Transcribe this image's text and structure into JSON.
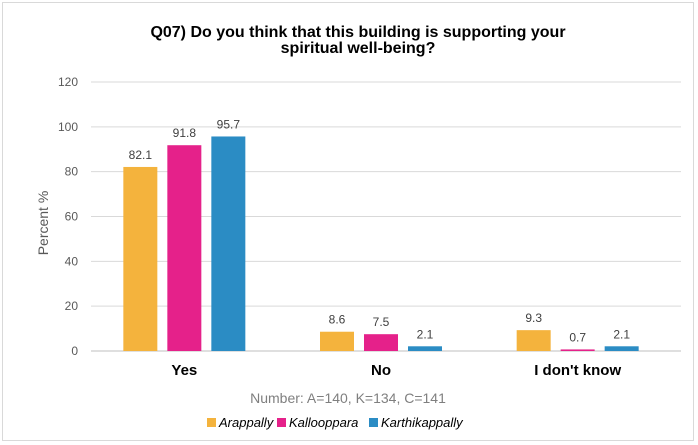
{
  "chart_data": {
    "type": "bar",
    "title_lines": [
      "Q07) Do you think that this building is supporting your",
      "spiritual well-being?"
    ],
    "ylabel": "Percent  %",
    "xlabel": "",
    "categories": [
      "Yes",
      "No",
      "I don't know"
    ],
    "series": [
      {
        "name": "Arappally",
        "color": "#f4b33d",
        "values": [
          82.1,
          8.6,
          9.3
        ]
      },
      {
        "name": "Kallooppara",
        "color": "#e5218a",
        "values": [
          91.8,
          7.5,
          0.7
        ]
      },
      {
        "name": "Karthikappally",
        "color": "#2b8cc4",
        "values": [
          95.7,
          2.1,
          2.1
        ]
      }
    ],
    "ylim": [
      0,
      120
    ],
    "yticks": [
      0,
      20,
      40,
      60,
      80,
      100,
      120
    ],
    "grid": true,
    "note": "Number: A=140, K=134, C=141",
    "legend_position": "bottom"
  }
}
